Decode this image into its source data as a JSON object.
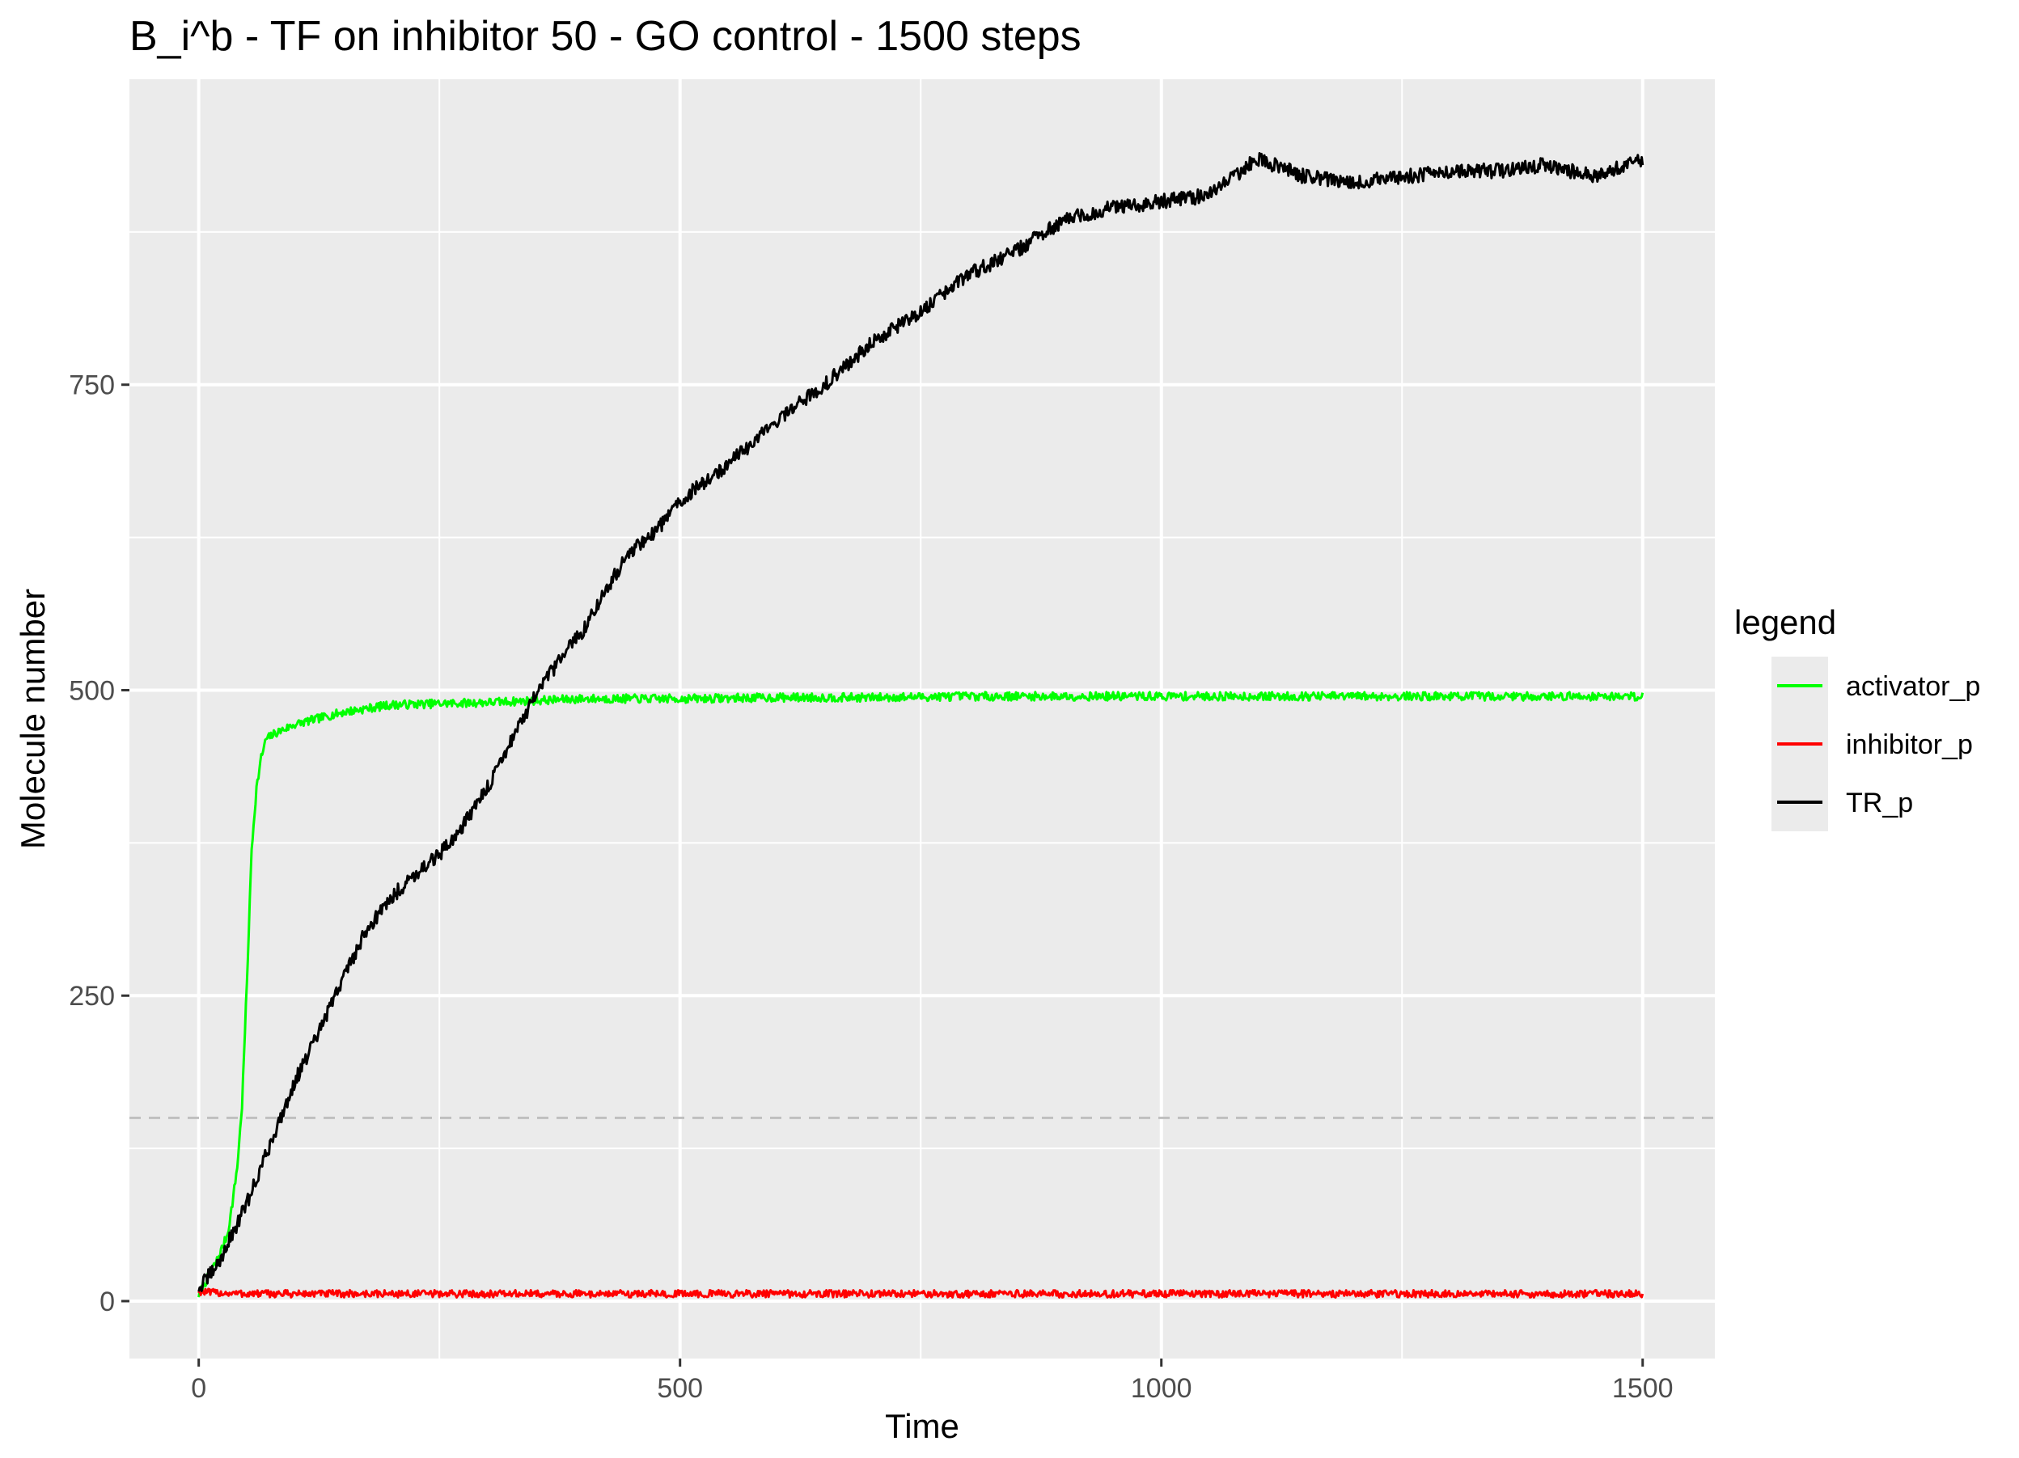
{
  "chart_data": {
    "type": "line",
    "title": "B_i^b - TF on inhibitor 50 - GO control - 1500 steps",
    "xlabel": "Time",
    "ylabel": "Molecule number",
    "xlim": [
      -72,
      1575
    ],
    "ylim": [
      -47,
      1000
    ],
    "x_ticks": [
      0,
      500,
      1000,
      1500
    ],
    "y_ticks": [
      0,
      250,
      500,
      750
    ],
    "x_tick_labels": [
      "0",
      "500",
      "1000",
      "1500"
    ],
    "y_tick_labels": [
      "0",
      "250",
      "500",
      "750"
    ],
    "grid": true,
    "legend": {
      "title": "legend",
      "position": "right"
    },
    "reference_line": {
      "y": 150,
      "style": "dashed",
      "color": "#bfbfbf"
    },
    "panel_background": "#ebebeb",
    "series": [
      {
        "name": "activator_p",
        "color": "#00ff00",
        "x": [
          0,
          10,
          20,
          30,
          35,
          40,
          45,
          50,
          55,
          60,
          65,
          70,
          80,
          100,
          150,
          200,
          300,
          400,
          500,
          600,
          700,
          800,
          900,
          1000,
          1100,
          1200,
          1300,
          1400,
          1500
        ],
        "y": [
          5,
          20,
          35,
          55,
          80,
          110,
          160,
          260,
          370,
          420,
          445,
          460,
          465,
          472,
          482,
          488,
          490,
          493,
          493,
          494,
          494,
          495,
          495,
          495,
          495,
          495,
          495,
          495,
          495
        ]
      },
      {
        "name": "inhibitor_p",
        "color": "#ff0000",
        "x": [
          0,
          10,
          50,
          100,
          200,
          300,
          400,
          500,
          600,
          700,
          800,
          900,
          1000,
          1100,
          1200,
          1300,
          1400,
          1500
        ],
        "y": [
          8,
          7,
          6,
          6,
          6,
          6,
          6,
          6,
          6,
          6,
          6,
          6,
          6,
          6,
          6,
          6,
          6,
          6
        ]
      },
      {
        "name": "TR_p",
        "color": "#000000",
        "x": [
          0,
          20,
          50,
          80,
          100,
          125,
          150,
          175,
          200,
          225,
          250,
          275,
          300,
          325,
          350,
          375,
          400,
          425,
          450,
          475,
          500,
          550,
          600,
          650,
          700,
          750,
          800,
          850,
          900,
          950,
          1000,
          1050,
          1100,
          1150,
          1200,
          1250,
          1300,
          1350,
          1400,
          1450,
          1500
        ],
        "y": [
          10,
          30,
          80,
          140,
          180,
          220,
          265,
          305,
          330,
          350,
          365,
          390,
          420,
          460,
          495,
          525,
          550,
          585,
          615,
          630,
          655,
          685,
          720,
          750,
          785,
          810,
          840,
          860,
          885,
          895,
          900,
          905,
          935,
          920,
          915,
          920,
          925,
          925,
          930,
          920,
          935
        ]
      }
    ]
  }
}
